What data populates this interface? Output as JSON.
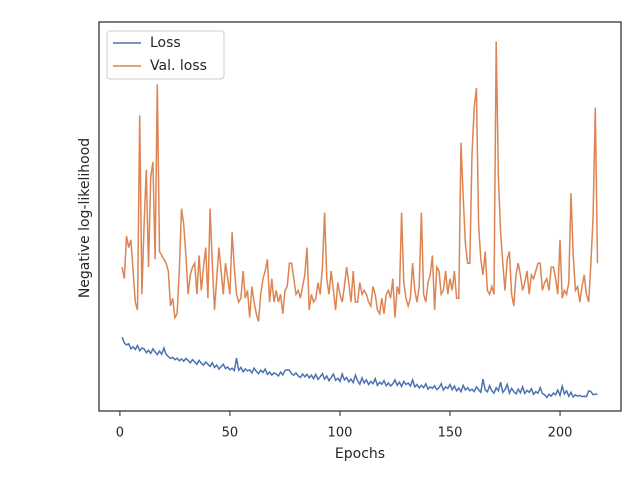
{
  "chart_data": {
    "type": "line",
    "xlabel": "Epochs",
    "ylabel": "Negative log-likelihood",
    "xlim": [
      -9.5,
      227.7
    ],
    "xticks": [
      0,
      50,
      100,
      150,
      200
    ],
    "ylim": [
      0,
      100
    ],
    "legend": "upper left",
    "x": [
      1,
      2,
      3,
      4,
      5,
      6,
      7,
      8,
      9,
      10,
      11,
      12,
      13,
      14,
      15,
      16,
      17,
      18,
      19,
      20,
      21,
      22,
      23,
      24,
      25,
      26,
      27,
      28,
      29,
      30,
      31,
      32,
      33,
      34,
      35,
      36,
      37,
      38,
      39,
      40,
      41,
      42,
      43,
      44,
      45,
      46,
      47,
      48,
      49,
      50,
      51,
      52,
      53,
      54,
      55,
      56,
      57,
      58,
      59,
      60,
      61,
      62,
      63,
      64,
      65,
      66,
      67,
      68,
      69,
      70,
      71,
      72,
      73,
      74,
      75,
      76,
      77,
      78,
      79,
      80,
      81,
      82,
      83,
      84,
      85,
      86,
      87,
      88,
      89,
      90,
      91,
      92,
      93,
      94,
      95,
      96,
      97,
      98,
      99,
      100,
      101,
      102,
      103,
      104,
      105,
      106,
      107,
      108,
      109,
      110,
      111,
      112,
      113,
      114,
      115,
      116,
      117,
      118,
      119,
      120,
      121,
      122,
      123,
      124,
      125,
      126,
      127,
      128,
      129,
      130,
      131,
      132,
      133,
      134,
      135,
      136,
      137,
      138,
      139,
      140,
      141,
      142,
      143,
      144,
      145,
      146,
      147,
      148,
      149,
      150,
      151,
      152,
      153,
      154,
      155,
      156,
      157,
      158,
      159,
      160,
      161,
      162,
      163,
      164,
      165,
      166,
      167,
      168,
      169,
      170,
      171,
      172,
      173,
      174,
      175,
      176,
      177,
      178,
      179,
      180,
      181,
      182,
      183,
      184,
      185,
      186,
      187,
      188,
      189,
      190,
      191,
      192,
      193,
      194,
      195,
      196,
      197,
      198,
      199,
      200,
      201,
      202,
      203,
      204,
      205,
      206,
      207,
      208,
      209,
      210,
      211,
      212,
      213,
      214,
      215,
      216,
      217
    ],
    "series": [
      {
        "name": "Loss",
        "color": "#4c72b0",
        "values": [
          19,
          17.5,
          17,
          17.3,
          16,
          16.5,
          15.8,
          16.8,
          15.5,
          16.2,
          16,
          15,
          15.6,
          14.8,
          16,
          15.2,
          14.5,
          15.4,
          14.6,
          16.2,
          14.6,
          14,
          13.5,
          13.8,
          13.2,
          13.6,
          12.9,
          13.4,
          12.8,
          13.5,
          13,
          12.4,
          13.2,
          12.6,
          12,
          13,
          12.3,
          11.8,
          12.6,
          12,
          11.5,
          12.4,
          11.2,
          11.8,
          10.8,
          11.4,
          12,
          10.9,
          11.3,
          10.6,
          11,
          10.4,
          13.6,
          10.5,
          11.2,
          10.1,
          10.8,
          10.3,
          10.6,
          9.8,
          11,
          10.2,
          9.6,
          10.5,
          9.9,
          10.8,
          9.4,
          10,
          9.2,
          9.8,
          9.5,
          9,
          10,
          9.3,
          10.4,
          10.6,
          10.5,
          9.6,
          9.2,
          9.8,
          9,
          8.6,
          9.5,
          8.8,
          9.4,
          8.5,
          9.2,
          8.3,
          9.4,
          8.1,
          8.8,
          9.6,
          8.2,
          9,
          7.8,
          8.6,
          9.5,
          7.9,
          8.4,
          7.6,
          9.5,
          8,
          8.6,
          7.5,
          8.2,
          7.3,
          9.2,
          7.8,
          6.9,
          8.5,
          7.2,
          8,
          6.8,
          7.6,
          7,
          8.3,
          6.6,
          7.4,
          6.9,
          7.8,
          6.5,
          7.2,
          6.4,
          7,
          8,
          6.6,
          7.4,
          6.3,
          7.6,
          6.8,
          7.2,
          6.4,
          8,
          6.2,
          6.8,
          5.9,
          6.6,
          6,
          7,
          5.6,
          6.2,
          5.8,
          6.5,
          5.5,
          6,
          7,
          5.4,
          6.2,
          5.8,
          6.8,
          5.5,
          6.4,
          5.2,
          5.9,
          5,
          6.6,
          5.4,
          6,
          5.2,
          5.6,
          5,
          6.2,
          5.5,
          4.8,
          8.2,
          5.4,
          4.9,
          6.5,
          5.2,
          4.6,
          6,
          5.2,
          7.4,
          4.8,
          5.5,
          6.8,
          4.6,
          5.8,
          5,
          4.4,
          5.6,
          4.7,
          6.2,
          4.5,
          5.3,
          4.8,
          5.7,
          4.3,
          5,
          4.6,
          6,
          4.5,
          4.2,
          3.5,
          4.3,
          3.8,
          4.6,
          4.2,
          5.4,
          4,
          6.4,
          4.4,
          5.2,
          3.8,
          4.8,
          3.6,
          4.2,
          3.8,
          4,
          3.7,
          3.8,
          3.7,
          5.2,
          5,
          4.2,
          4.3,
          4.4
        ]
      },
      {
        "name": "Val. loss",
        "color": "#dd8452",
        "values": [
          37,
          34,
          45,
          42,
          44,
          36,
          28,
          26,
          76,
          30,
          48,
          62,
          37,
          60,
          64,
          39,
          84,
          41,
          40,
          39,
          38,
          36,
          27,
          29,
          24,
          25,
          36,
          52,
          48,
          40,
          30,
          35,
          37,
          38,
          30,
          40,
          31,
          37,
          42,
          29,
          52,
          38,
          26,
          34,
          42,
          36,
          30,
          38,
          34,
          30,
          46,
          37,
          30,
          28,
          29,
          36,
          29,
          31,
          24,
          32,
          28,
          25,
          23,
          30,
          34,
          36,
          39,
          28,
          34,
          28,
          31,
          28,
          30,
          25,
          31,
          32,
          38,
          38,
          34,
          30,
          31,
          29,
          32,
          35,
          42,
          26,
          30,
          28,
          29,
          33,
          30,
          37,
          51,
          34,
          30,
          36,
          31,
          26,
          33,
          30,
          28,
          32,
          37,
          33,
          28,
          36,
          28,
          28,
          33,
          30,
          31,
          30,
          28,
          27,
          32,
          30,
          26,
          25,
          29,
          25,
          30,
          31,
          29,
          34,
          24,
          32,
          30,
          51,
          33,
          29,
          27,
          29,
          38,
          31,
          28,
          32,
          51,
          30,
          28,
          33,
          35,
          40,
          26,
          37,
          36,
          30,
          31,
          36,
          30,
          34,
          31,
          36,
          29,
          29,
          69,
          55,
          43,
          38,
          38,
          66,
          78,
          83,
          48,
          39,
          35,
          41,
          31,
          30,
          32,
          30,
          95,
          60,
          46,
          38,
          31,
          39,
          41,
          30,
          27,
          35,
          38,
          35,
          31,
          33,
          36,
          30,
          35,
          34,
          36,
          38,
          38,
          31,
          33,
          34,
          31,
          37,
          37,
          34,
          30,
          44,
          29,
          31,
          30,
          33,
          56,
          40,
          31,
          32,
          28,
          32,
          35,
          30,
          28,
          38,
          50,
          78,
          38
        ]
      }
    ]
  }
}
